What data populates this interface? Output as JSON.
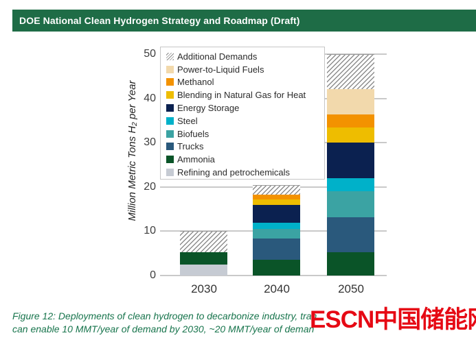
{
  "header": {
    "title": "DOE National Clean Hydrogen Strategy and Roadmap (Draft)",
    "background_color": "#1e6c46"
  },
  "chart_data": {
    "type": "bar",
    "stacked": true,
    "categories": [
      "2030",
      "2040",
      "2050"
    ],
    "series": [
      {
        "name": "Refining and petrochemicals",
        "color": "#c6cbd3",
        "values": [
          2.5,
          0,
          0
        ]
      },
      {
        "name": "Ammonia",
        "color": "#0a5428",
        "values": [
          2.7,
          3.5,
          5.3
        ]
      },
      {
        "name": "Trucks",
        "color": "#2a597c",
        "values": [
          0,
          4.9,
          7.9
        ]
      },
      {
        "name": "Biofuels",
        "color": "#3ba3a3",
        "values": [
          0,
          2.2,
          5.9
        ]
      },
      {
        "name": "Steel",
        "color": "#00b1c9",
        "values": [
          0,
          1.3,
          2.9
        ]
      },
      {
        "name": "Energy Storage",
        "color": "#0b2150",
        "values": [
          0,
          4.1,
          8.0
        ]
      },
      {
        "name": "Blending in Natural Gas for Heat",
        "color": "#eebd00",
        "values": [
          0,
          1.2,
          3.4
        ]
      },
      {
        "name": "Methanol",
        "color": "#f39200",
        "values": [
          0,
          1.1,
          3.0
        ]
      },
      {
        "name": "Power-to-Liquid Fuels",
        "color": "#f2d9ac",
        "values": [
          0,
          0,
          5.7
        ]
      },
      {
        "name": "Additional Demands",
        "color": "hatch",
        "values": [
          4.8,
          2.1,
          7.9
        ]
      }
    ],
    "bar_totals": [
      10,
      20.4,
      50
    ],
    "ylabel": "Million Metric Tons H₂ per Year",
    "yticks": [
      0,
      10,
      20,
      30,
      40,
      50
    ],
    "ylim": [
      0,
      50
    ],
    "grid": true,
    "legend_position": "upper-left",
    "legend_order": [
      "Additional Demands",
      "Power-to-Liquid Fuels",
      "Methanol",
      "Blending in Natural Gas for Heat",
      "Energy Storage",
      "Steel",
      "Biofuels",
      "Trucks",
      "Ammonia",
      "Refining and petrochemicals"
    ]
  },
  "caption": {
    "line1": "Figure 12: Deployments of clean hydrogen to decarbonize industry, tran",
    "line2": "can enable 10 MMT/year of demand by 2030, ~20 MMT/year of deman",
    "color": "#17744c"
  },
  "watermark": {
    "text": "ESCN中国储能网",
    "color": "#e60914"
  }
}
